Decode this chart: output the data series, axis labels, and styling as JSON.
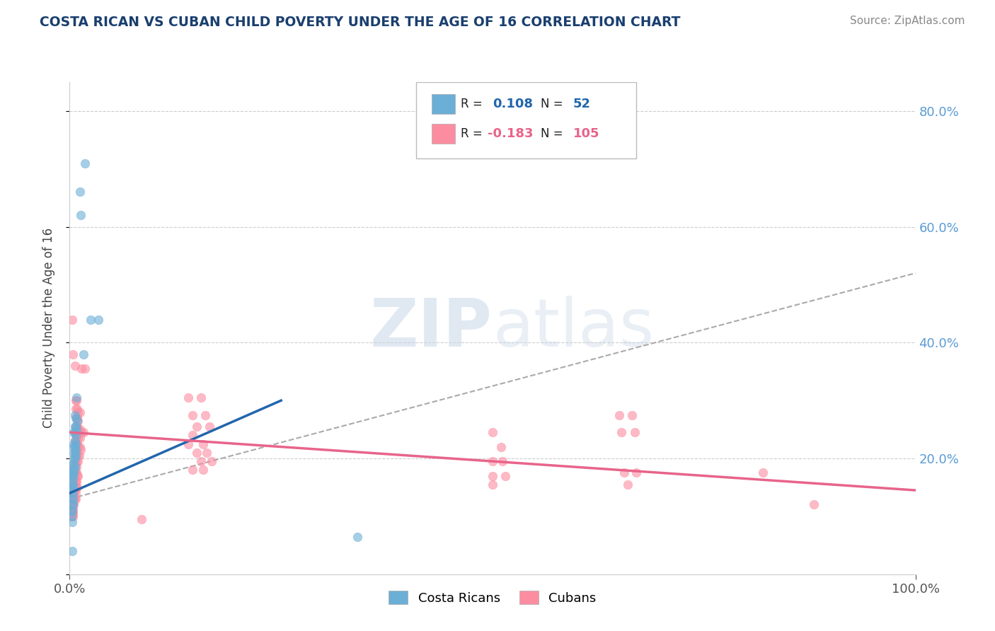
{
  "title": "COSTA RICAN VS CUBAN CHILD POVERTY UNDER THE AGE OF 16 CORRELATION CHART",
  "source": "Source: ZipAtlas.com",
  "ylabel": "Child Poverty Under the Age of 16",
  "xlim": [
    0.0,
    1.0
  ],
  "ylim": [
    0.0,
    0.85
  ],
  "costa_rican_color": "#6baed6",
  "cuban_color": "#fc8da0",
  "watermark_color": "#c5d5e8",
  "R_cr": 0.108,
  "N_cr": 52,
  "R_cu": -0.183,
  "N_cu": 105,
  "cr_trend": [
    0.14,
    0.3
  ],
  "cu_trend": [
    0.245,
    0.145
  ],
  "dash_trend": [
    0.13,
    0.52
  ],
  "cr_trend_xrange": [
    0.0,
    0.25
  ],
  "cu_trend_xrange": [
    0.0,
    1.0
  ],
  "dash_trend_xrange": [
    0.0,
    1.0
  ],
  "costa_rican_scatter": [
    [
      0.012,
      0.66
    ],
    [
      0.018,
      0.71
    ],
    [
      0.013,
      0.62
    ],
    [
      0.025,
      0.44
    ],
    [
      0.034,
      0.44
    ],
    [
      0.016,
      0.38
    ],
    [
      0.008,
      0.305
    ],
    [
      0.006,
      0.275
    ],
    [
      0.007,
      0.27
    ],
    [
      0.009,
      0.265
    ],
    [
      0.006,
      0.255
    ],
    [
      0.007,
      0.255
    ],
    [
      0.008,
      0.25
    ],
    [
      0.005,
      0.245
    ],
    [
      0.006,
      0.245
    ],
    [
      0.007,
      0.24
    ],
    [
      0.006,
      0.23
    ],
    [
      0.007,
      0.225
    ],
    [
      0.005,
      0.225
    ],
    [
      0.005,
      0.22
    ],
    [
      0.006,
      0.22
    ],
    [
      0.007,
      0.215
    ],
    [
      0.005,
      0.21
    ],
    [
      0.006,
      0.21
    ],
    [
      0.007,
      0.205
    ],
    [
      0.005,
      0.2
    ],
    [
      0.006,
      0.2
    ],
    [
      0.004,
      0.19
    ],
    [
      0.005,
      0.19
    ],
    [
      0.006,
      0.185
    ],
    [
      0.004,
      0.18
    ],
    [
      0.005,
      0.18
    ],
    [
      0.004,
      0.175
    ],
    [
      0.005,
      0.175
    ],
    [
      0.003,
      0.17
    ],
    [
      0.004,
      0.17
    ],
    [
      0.004,
      0.165
    ],
    [
      0.003,
      0.155
    ],
    [
      0.004,
      0.155
    ],
    [
      0.003,
      0.15
    ],
    [
      0.004,
      0.15
    ],
    [
      0.003,
      0.14
    ],
    [
      0.004,
      0.14
    ],
    [
      0.003,
      0.13
    ],
    [
      0.004,
      0.13
    ],
    [
      0.003,
      0.12
    ],
    [
      0.004,
      0.12
    ],
    [
      0.002,
      0.11
    ],
    [
      0.003,
      0.11
    ],
    [
      0.002,
      0.1
    ],
    [
      0.003,
      0.09
    ],
    [
      0.34,
      0.065
    ],
    [
      0.003,
      0.04
    ]
  ],
  "cuban_scatter": [
    [
      0.003,
      0.44
    ],
    [
      0.004,
      0.38
    ],
    [
      0.006,
      0.36
    ],
    [
      0.014,
      0.355
    ],
    [
      0.018,
      0.355
    ],
    [
      0.007,
      0.3
    ],
    [
      0.008,
      0.3
    ],
    [
      0.007,
      0.285
    ],
    [
      0.009,
      0.285
    ],
    [
      0.01,
      0.28
    ],
    [
      0.012,
      0.28
    ],
    [
      0.008,
      0.27
    ],
    [
      0.009,
      0.27
    ],
    [
      0.01,
      0.265
    ],
    [
      0.008,
      0.255
    ],
    [
      0.009,
      0.255
    ],
    [
      0.01,
      0.25
    ],
    [
      0.012,
      0.25
    ],
    [
      0.014,
      0.245
    ],
    [
      0.016,
      0.245
    ],
    [
      0.008,
      0.24
    ],
    [
      0.009,
      0.24
    ],
    [
      0.01,
      0.235
    ],
    [
      0.012,
      0.235
    ],
    [
      0.006,
      0.23
    ],
    [
      0.007,
      0.23
    ],
    [
      0.008,
      0.225
    ],
    [
      0.009,
      0.225
    ],
    [
      0.01,
      0.22
    ],
    [
      0.012,
      0.22
    ],
    [
      0.013,
      0.215
    ],
    [
      0.007,
      0.21
    ],
    [
      0.008,
      0.21
    ],
    [
      0.01,
      0.205
    ],
    [
      0.011,
      0.205
    ],
    [
      0.006,
      0.2
    ],
    [
      0.007,
      0.2
    ],
    [
      0.008,
      0.195
    ],
    [
      0.01,
      0.195
    ],
    [
      0.006,
      0.19
    ],
    [
      0.007,
      0.19
    ],
    [
      0.008,
      0.185
    ],
    [
      0.005,
      0.18
    ],
    [
      0.006,
      0.18
    ],
    [
      0.007,
      0.175
    ],
    [
      0.008,
      0.175
    ],
    [
      0.009,
      0.17
    ],
    [
      0.01,
      0.17
    ],
    [
      0.005,
      0.165
    ],
    [
      0.006,
      0.165
    ],
    [
      0.007,
      0.16
    ],
    [
      0.008,
      0.16
    ],
    [
      0.005,
      0.155
    ],
    [
      0.006,
      0.155
    ],
    [
      0.007,
      0.15
    ],
    [
      0.009,
      0.15
    ],
    [
      0.005,
      0.145
    ],
    [
      0.006,
      0.145
    ],
    [
      0.005,
      0.14
    ],
    [
      0.007,
      0.14
    ],
    [
      0.004,
      0.135
    ],
    [
      0.005,
      0.135
    ],
    [
      0.006,
      0.13
    ],
    [
      0.007,
      0.13
    ],
    [
      0.004,
      0.125
    ],
    [
      0.005,
      0.125
    ],
    [
      0.004,
      0.12
    ],
    [
      0.005,
      0.12
    ],
    [
      0.003,
      0.115
    ],
    [
      0.004,
      0.115
    ],
    [
      0.003,
      0.11
    ],
    [
      0.004,
      0.11
    ],
    [
      0.003,
      0.105
    ],
    [
      0.004,
      0.105
    ],
    [
      0.003,
      0.1
    ],
    [
      0.004,
      0.1
    ],
    [
      0.14,
      0.305
    ],
    [
      0.155,
      0.305
    ],
    [
      0.145,
      0.275
    ],
    [
      0.16,
      0.275
    ],
    [
      0.15,
      0.255
    ],
    [
      0.165,
      0.255
    ],
    [
      0.145,
      0.24
    ],
    [
      0.14,
      0.225
    ],
    [
      0.158,
      0.225
    ],
    [
      0.15,
      0.21
    ],
    [
      0.162,
      0.21
    ],
    [
      0.155,
      0.195
    ],
    [
      0.168,
      0.195
    ],
    [
      0.145,
      0.18
    ],
    [
      0.158,
      0.18
    ],
    [
      0.5,
      0.245
    ],
    [
      0.51,
      0.22
    ],
    [
      0.5,
      0.195
    ],
    [
      0.512,
      0.195
    ],
    [
      0.5,
      0.17
    ],
    [
      0.515,
      0.17
    ],
    [
      0.5,
      0.155
    ],
    [
      0.65,
      0.275
    ],
    [
      0.665,
      0.275
    ],
    [
      0.652,
      0.245
    ],
    [
      0.668,
      0.245
    ],
    [
      0.656,
      0.175
    ],
    [
      0.67,
      0.175
    ],
    [
      0.66,
      0.155
    ],
    [
      0.82,
      0.175
    ],
    [
      0.88,
      0.12
    ],
    [
      0.085,
      0.095
    ]
  ]
}
